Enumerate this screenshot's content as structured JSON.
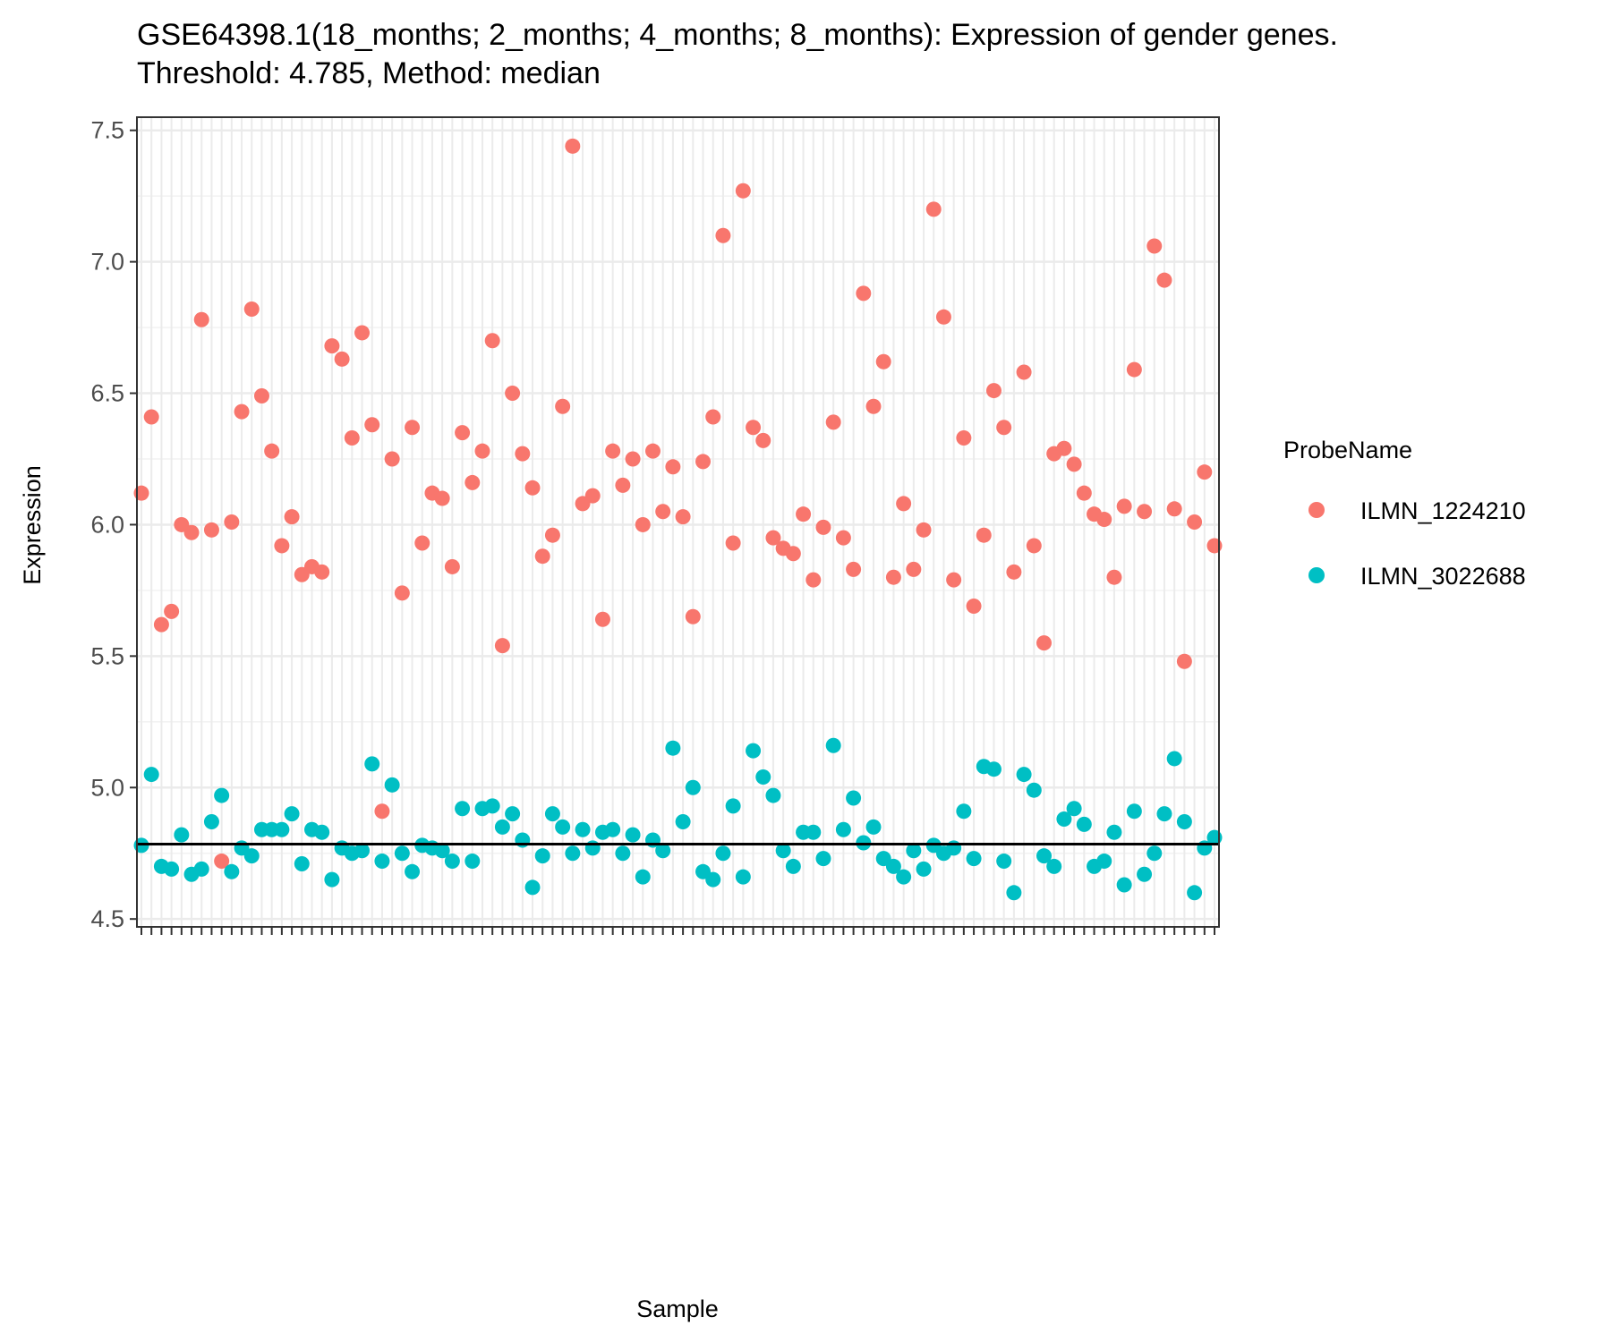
{
  "chart_data": {
    "type": "scatter",
    "title": "GSE64398.1(18_months; 2_months; 4_months; 8_months): Expression of gender genes.",
    "subtitle": " Threshold: 4.785, Method: median",
    "xlabel": "Sample",
    "ylabel": "Expression",
    "ylim": [
      4.47,
      7.55
    ],
    "yticks": [
      4.5,
      5.0,
      5.5,
      6.0,
      6.5,
      7.0,
      7.5
    ],
    "ytick_labels": [
      "4.5",
      "5.0",
      "5.5",
      "6.0",
      "6.5",
      "7.0",
      "7.5"
    ],
    "threshold": 4.785,
    "grid": true,
    "legend_position": "right",
    "legend_title": "ProbeName",
    "sample_count": 108,
    "sample_label_color": "#0000ff",
    "series": [
      {
        "name": "ILMN_1224210",
        "color": "#F8766D",
        "values": [
          6.12,
          6.41,
          5.62,
          5.67,
          6.0,
          5.97,
          6.78,
          5.98,
          4.72,
          6.01,
          6.43,
          6.82,
          6.49,
          6.28,
          5.92,
          6.03,
          5.81,
          5.84,
          5.82,
          6.68,
          6.63,
          6.33,
          6.73,
          6.38,
          4.91,
          6.25,
          5.74,
          6.37,
          5.93,
          6.12,
          6.1,
          5.84,
          6.35,
          6.16,
          6.28,
          6.7,
          5.54,
          6.5,
          6.27,
          6.14,
          5.88,
          5.96,
          6.45,
          7.44,
          6.08,
          6.11,
          5.64,
          6.28,
          6.15,
          6.25,
          6.0,
          6.28,
          6.05,
          6.22,
          6.03,
          5.65,
          6.24,
          6.41,
          7.1,
          5.93,
          7.27,
          6.37,
          6.32,
          5.95,
          5.91,
          5.89,
          6.04,
          5.79,
          5.99,
          6.39,
          5.95,
          5.83,
          6.88,
          6.45,
          6.62,
          5.8,
          6.08,
          5.83,
          5.98,
          7.2,
          6.79,
          5.79,
          6.33,
          5.69,
          5.96,
          6.51,
          6.37,
          5.82,
          6.58,
          5.92,
          5.55,
          6.27,
          6.29,
          6.23,
          6.12,
          6.04,
          6.02,
          5.8,
          6.07,
          6.59,
          6.05,
          7.06,
          6.93,
          6.06,
          5.48,
          6.01,
          6.2,
          5.92
        ]
      },
      {
        "name": "ILMN_3022688",
        "color": "#00BFC4",
        "values": [
          4.78,
          5.05,
          4.7,
          4.69,
          4.82,
          4.67,
          4.69,
          4.87,
          4.97,
          4.68,
          4.77,
          4.74,
          4.84,
          4.84,
          4.84,
          4.9,
          4.71,
          4.84,
          4.83,
          4.65,
          4.77,
          4.75,
          4.76,
          5.09,
          4.72,
          5.01,
          4.75,
          4.68,
          4.78,
          4.77,
          4.76,
          4.72,
          4.92,
          4.72,
          4.92,
          4.93,
          4.85,
          4.9,
          4.8,
          4.62,
          4.74,
          4.9,
          4.85,
          4.75,
          4.84,
          4.77,
          4.83,
          4.84,
          4.75,
          4.82,
          4.66,
          4.8,
          4.76,
          5.15,
          4.87,
          5.0,
          4.68,
          4.65,
          4.75,
          4.93,
          4.66,
          5.14,
          5.04,
          4.97,
          4.76,
          4.7,
          4.83,
          4.83,
          4.73,
          5.16,
          4.84,
          4.96,
          4.79,
          4.85,
          4.73,
          4.7,
          4.66,
          4.76,
          4.69,
          4.78,
          4.75,
          4.77,
          4.91,
          4.73,
          5.08,
          5.07,
          4.72,
          4.6,
          5.05,
          4.99,
          4.74,
          4.7,
          4.88,
          4.92,
          4.86,
          4.7,
          4.72,
          4.83,
          4.63,
          4.91,
          4.67,
          4.75,
          4.9,
          5.11,
          4.87,
          4.6,
          4.77,
          4.81
        ]
      }
    ]
  }
}
